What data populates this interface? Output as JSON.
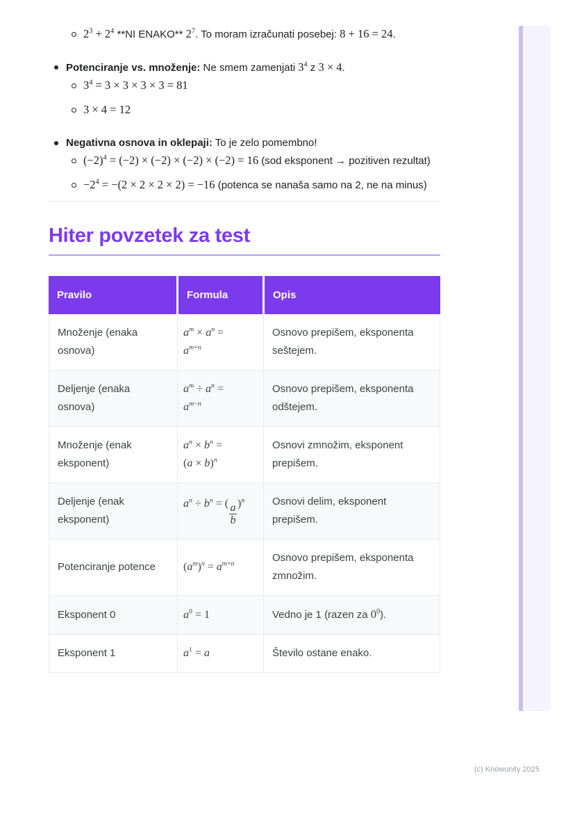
{
  "page": {
    "footer_text": "(c) Knowunity 2025"
  },
  "colors": {
    "accent_purple": "#7c3aed",
    "title_underline": "#b49bef",
    "table_header_bg": "#7c3aed",
    "table_header_text": "#ffffff",
    "row_alt_bg": "#f8f9fa",
    "table_border": "#e9ebee",
    "body_text": "#202124",
    "cell_text": "#3c4043",
    "scroll_strip_bg": "#f5f3fb",
    "scroll_strip_border": "#cbbeed",
    "footer_text": "#9aa0a6"
  },
  "notes": {
    "items": [
      {
        "level": 2,
        "segments": [
          {
            "t": "math",
            "v": "2^{3} + 2^{4}"
          },
          {
            "t": "text",
            "v": " **NI ENAKO** "
          },
          {
            "t": "math",
            "v": "2^{7}"
          },
          {
            "t": "text",
            "v": ". To moram izračunati posebej: "
          },
          {
            "t": "math",
            "v": "8 + 16 = 24"
          },
          {
            "t": "text",
            "v": "."
          }
        ]
      },
      {
        "level": 1,
        "segments": [
          {
            "t": "bold",
            "v": "Potenciranje vs. množenje:"
          },
          {
            "t": "text",
            "v": " Ne smem zamenjati "
          },
          {
            "t": "math",
            "v": "3^{4}"
          },
          {
            "t": "text",
            "v": " z "
          },
          {
            "t": "math",
            "v": "3 × 4"
          },
          {
            "t": "text",
            "v": "."
          }
        ]
      },
      {
        "level": 2,
        "segments": [
          {
            "t": "math",
            "v": "3^{4} = 3 × 3 × 3 × 3 = 81"
          }
        ]
      },
      {
        "level": 2,
        "segments": [
          {
            "t": "math",
            "v": "3 × 4 = 12"
          }
        ]
      },
      {
        "level": 1,
        "segments": [
          {
            "t": "bold",
            "v": "Negativna osnova in oklepaji:"
          },
          {
            "t": "text",
            "v": " To je zelo pomembno!"
          }
        ]
      },
      {
        "level": 2,
        "segments": [
          {
            "t": "math",
            "v": "(−2)^{4} = (−2) × (−2) × (−2) × (−2) = 16"
          },
          {
            "t": "text",
            "v": " (sod eksponent → pozitiven rezultat)"
          }
        ]
      },
      {
        "level": 2,
        "segments": [
          {
            "t": "math",
            "v": "−2^{4} = −(2 × 2 × 2 × 2) = −16"
          },
          {
            "t": "text",
            "v": " (potenca se nanaša samo na 2, ne na minus)"
          }
        ]
      }
    ]
  },
  "section": {
    "title": "Hiter povzetek za test"
  },
  "summary_table": {
    "headers": [
      "Pravilo",
      "Formula",
      "Opis"
    ],
    "rows": [
      {
        "pravilo": [
          {
            "t": "text",
            "v": "Množenje (enaka osnova)"
          }
        ],
        "formula": [
          {
            "t": "math",
            "v": "a^{m} × a^{n} =\na^{m+n}"
          }
        ],
        "opis": [
          {
            "t": "text",
            "v": "Osnovo prepišem, eksponenta seštejem."
          }
        ]
      },
      {
        "pravilo": [
          {
            "t": "text",
            "v": "Deljenje (enaka osnova)"
          }
        ],
        "formula": [
          {
            "t": "math",
            "v": "a^{m} ÷ a^{n} =\na^{m−n}"
          }
        ],
        "opis": [
          {
            "t": "text",
            "v": "Osnovo prepišem, eksponenta odštejem."
          }
        ]
      },
      {
        "pravilo": [
          {
            "t": "text",
            "v": "Množenje (enak eksponent)"
          }
        ],
        "formula": [
          {
            "t": "math",
            "v": "a^{n} × b^{n} =\n(a × b)^{n}"
          }
        ],
        "opis": [
          {
            "t": "text",
            "v": "Osnovi zmnožim, eksponent prepišem."
          }
        ]
      },
      {
        "pravilo": [
          {
            "t": "text",
            "v": "Deljenje (enak eksponent)"
          }
        ],
        "formula": [
          {
            "t": "math",
            "v": "a^{n} ÷ b^{n} = ("
          },
          {
            "t": "mathfrac",
            "num": "a",
            "den": "b"
          },
          {
            "t": "math",
            "v": ")^{n}"
          }
        ],
        "opis": [
          {
            "t": "text",
            "v": "Osnovi delim, eksponent prepišem."
          }
        ]
      },
      {
        "pravilo": [
          {
            "t": "text",
            "v": "Potenciranje potence"
          }
        ],
        "formula": [
          {
            "t": "math",
            "v": "(a^{m})^{n} = a^{m×n}"
          }
        ],
        "opis": [
          {
            "t": "text",
            "v": "Osnovo prepišem, eksponenta zmnožim."
          }
        ]
      },
      {
        "pravilo": [
          {
            "t": "text",
            "v": "Eksponent 0"
          }
        ],
        "formula": [
          {
            "t": "math",
            "v": "a^{0} = 1"
          }
        ],
        "opis": [
          {
            "t": "text",
            "v": "Vedno je 1 (razen za "
          },
          {
            "t": "math",
            "v": "0^{0}"
          },
          {
            "t": "text",
            "v": ")."
          }
        ]
      },
      {
        "pravilo": [
          {
            "t": "text",
            "v": "Eksponent 1"
          }
        ],
        "formula": [
          {
            "t": "math",
            "v": "a^{1} = a"
          }
        ],
        "opis": [
          {
            "t": "text",
            "v": "Število ostane enako."
          }
        ]
      }
    ]
  }
}
